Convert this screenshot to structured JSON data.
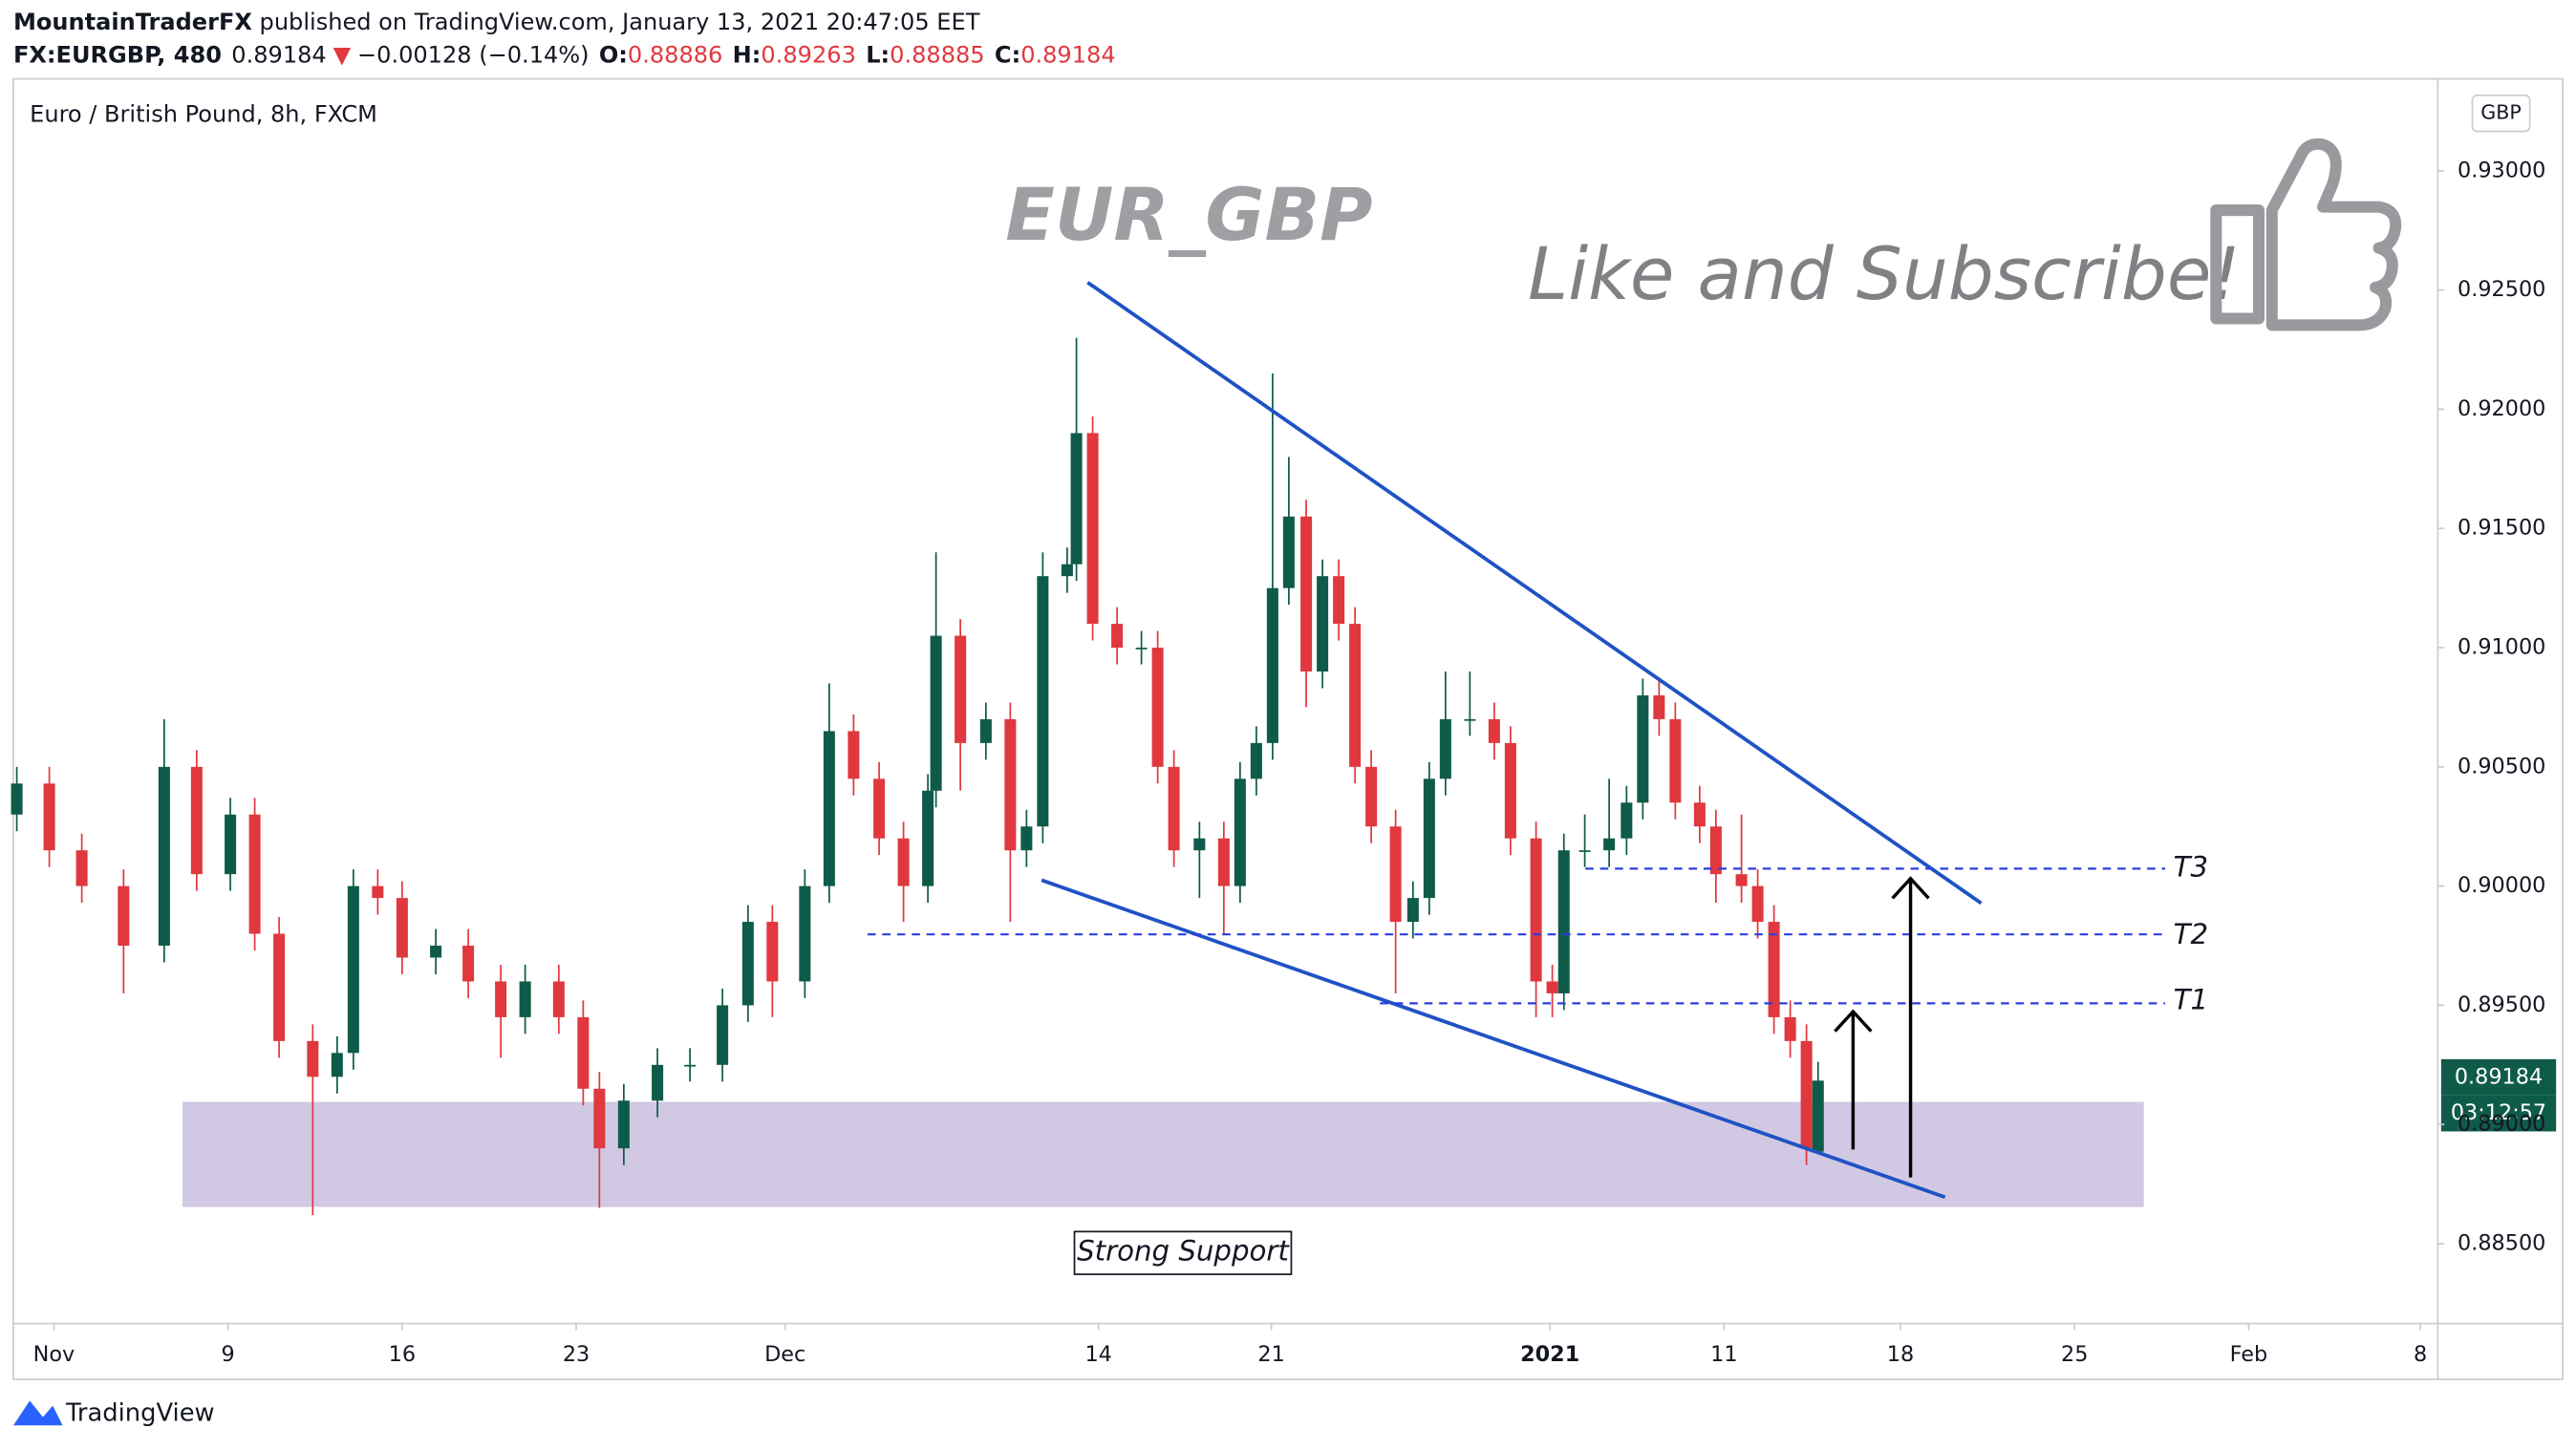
{
  "header": {
    "author": "MountainTraderFX",
    "published": " published on TradingView.com, January 13, 2021 20:47:05 EET",
    "symbol": "FX:EURGBP, 480",
    "price": "0.89184",
    "arrow": "▼",
    "change": "−0.00128 (−0.14%)",
    "ohlc": [
      {
        "label": "O:",
        "value": "0.88886"
      },
      {
        "label": "H:",
        "value": "0.89263"
      },
      {
        "label": "L:",
        "value": "0.88885"
      },
      {
        "label": "C:",
        "value": "0.89184"
      }
    ]
  },
  "chart_data": {
    "type": "candlestick",
    "title": "Euro / British Pound, 8h, FXCM",
    "currency": "GBP",
    "annotations": {
      "pair": "EUR_GBP",
      "cta": "Like and Subscribe!",
      "support": "Strong Support",
      "t1": "T1",
      "t2": "T2",
      "t3": "T3"
    },
    "last_price_label": "0.89184",
    "countdown": "03:12:57",
    "up_color": "#0f5b49",
    "down_color": "#e0383e",
    "grid": false,
    "xlim": [
      0,
      208.9
    ],
    "xticks": [
      {
        "value": 3.5,
        "label": "Nov"
      },
      {
        "value": 18.5,
        "label": "9"
      },
      {
        "value": 33.5,
        "label": "16"
      },
      {
        "value": 48.5,
        "label": "23"
      },
      {
        "value": 66.5,
        "label": "Dec"
      },
      {
        "value": 93.5,
        "label": "14"
      },
      {
        "value": 108.4,
        "label": "21"
      },
      {
        "value": 132.4,
        "label": "2021"
      },
      {
        "value": 147.4,
        "label": "11"
      },
      {
        "value": 162.6,
        "label": "18"
      },
      {
        "value": 177.6,
        "label": "25"
      },
      {
        "value": 192.6,
        "label": "Feb"
      },
      {
        "value": 207.4,
        "label": "8"
      }
    ],
    "ylim": [
      0.88165,
      0.93386
    ],
    "yticks": [
      {
        "value": 0.885,
        "label": "0.88500"
      },
      {
        "value": 0.89,
        "label": "0.89000"
      },
      {
        "value": 0.895,
        "label": "0.89500"
      },
      {
        "value": 0.9,
        "label": "0.90000"
      },
      {
        "value": 0.905,
        "label": "0.90500"
      },
      {
        "value": 0.91,
        "label": "0.91000"
      },
      {
        "value": 0.915,
        "label": "0.91500"
      },
      {
        "value": 0.92,
        "label": "0.92000"
      },
      {
        "value": 0.925,
        "label": "0.92500"
      },
      {
        "value": 0.93,
        "label": "0.93000"
      }
    ],
    "x": [
      0.3,
      3.1,
      5.9,
      9.5,
      13.0,
      15.8,
      18.7,
      20.8,
      22.9,
      25.8,
      27.9,
      29.3,
      31.4,
      33.5,
      36.4,
      39.2,
      42.0,
      44.1,
      47.0,
      49.1,
      50.5,
      52.6,
      55.5,
      58.3,
      61.1,
      63.3,
      65.4,
      68.2,
      70.3,
      72.4,
      74.6,
      76.7,
      78.8,
      79.5,
      81.6,
      83.8,
      85.9,
      87.3,
      88.7,
      90.8,
      91.6,
      93.0,
      95.1,
      97.2,
      98.6,
      100.0,
      102.2,
      104.3,
      105.7,
      107.1,
      108.5,
      109.9,
      111.4,
      112.8,
      114.2,
      115.6,
      117.0,
      119.1,
      120.6,
      122.0,
      123.4,
      125.5,
      127.6,
      129.0,
      131.2,
      132.6,
      133.6,
      135.4,
      137.5,
      139.0,
      140.4,
      141.8,
      143.2,
      145.3,
      146.7,
      148.9,
      150.3,
      151.7,
      153.1,
      154.5,
      155.5
    ],
    "open": [
      0.903,
      0.9043,
      0.9015,
      0.9,
      0.8975,
      0.905,
      0.9005,
      0.903,
      0.898,
      0.8935,
      0.892,
      0.893,
      0.9,
      0.8995,
      0.897,
      0.8975,
      0.896,
      0.8945,
      0.896,
      0.8945,
      0.8915,
      0.889,
      0.891,
      0.8925,
      0.8925,
      0.895,
      0.8985,
      0.896,
      0.9,
      0.9065,
      0.9045,
      0.902,
      0.9,
      0.904,
      0.9105,
      0.906,
      0.907,
      0.9015,
      0.9025,
      0.913,
      0.9135,
      0.919,
      0.911,
      0.91,
      0.91,
      0.905,
      0.9015,
      0.902,
      0.9,
      0.9045,
      0.906,
      0.9125,
      0.9155,
      0.909,
      0.913,
      0.911,
      0.905,
      0.9025,
      0.8985,
      0.8995,
      0.9045,
      0.907,
      0.907,
      0.906,
      0.902,
      0.896,
      0.8955,
      0.9015,
      0.9015,
      0.902,
      0.9035,
      0.908,
      0.907,
      0.9035,
      0.9025,
      0.9005,
      0.9,
      0.8985,
      0.8945,
      0.8935,
      0.88886
    ],
    "high": [
      0.905,
      0.905,
      0.9022,
      0.9007,
      0.907,
      0.9057,
      0.9037,
      0.9037,
      0.8987,
      0.8942,
      0.8937,
      0.9007,
      0.9007,
      0.9002,
      0.8982,
      0.8982,
      0.8967,
      0.8967,
      0.8967,
      0.8952,
      0.8922,
      0.8917,
      0.8932,
      0.8932,
      0.8957,
      0.8992,
      0.8992,
      0.9007,
      0.9085,
      0.9072,
      0.9052,
      0.9027,
      0.9047,
      0.914,
      0.9112,
      0.9077,
      0.9077,
      0.9032,
      0.914,
      0.9142,
      0.923,
      0.9197,
      0.9117,
      0.9107,
      0.9107,
      0.9057,
      0.9027,
      0.9027,
      0.9052,
      0.9067,
      0.9215,
      0.918,
      0.9162,
      0.9137,
      0.9137,
      0.9117,
      0.9057,
      0.9032,
      0.9002,
      0.9052,
      0.909,
      0.909,
      0.9077,
      0.9067,
      0.9027,
      0.8967,
      0.9022,
      0.903,
      0.9045,
      0.9042,
      0.9087,
      0.9087,
      0.9077,
      0.9042,
      0.9032,
      0.903,
      0.9007,
      0.8992,
      0.8952,
      0.8942,
      0.89263
    ],
    "low": [
      0.9023,
      0.9008,
      0.8993,
      0.8955,
      0.8968,
      0.8998,
      0.8998,
      0.8973,
      0.8928,
      0.8862,
      0.8913,
      0.8923,
      0.8988,
      0.8963,
      0.8963,
      0.8953,
      0.8928,
      0.8938,
      0.8938,
      0.8908,
      0.8865,
      0.8883,
      0.8903,
      0.8918,
      0.8918,
      0.8943,
      0.8945,
      0.8953,
      0.8993,
      0.9038,
      0.9013,
      0.8985,
      0.8993,
      0.9033,
      0.904,
      0.9053,
      0.8985,
      0.9008,
      0.9018,
      0.9123,
      0.9128,
      0.9103,
      0.9093,
      0.9093,
      0.9043,
      0.9008,
      0.8995,
      0.898,
      0.8993,
      0.9038,
      0.9053,
      0.9118,
      0.9075,
      0.9083,
      0.9103,
      0.9043,
      0.9018,
      0.8955,
      0.8978,
      0.8988,
      0.9038,
      0.9063,
      0.9053,
      0.9013,
      0.8945,
      0.8945,
      0.8948,
      0.9008,
      0.9008,
      0.9013,
      0.9028,
      0.9063,
      0.9028,
      0.9018,
      0.8993,
      0.8993,
      0.8978,
      0.8938,
      0.8928,
      0.8883,
      0.88885
    ],
    "close": [
      0.9043,
      0.9015,
      0.9,
      0.8975,
      0.905,
      0.9005,
      0.903,
      0.898,
      0.8935,
      0.892,
      0.893,
      0.9,
      0.8995,
      0.897,
      0.8975,
      0.896,
      0.8945,
      0.896,
      0.8945,
      0.8915,
      0.889,
      0.891,
      0.8925,
      0.8925,
      0.895,
      0.8985,
      0.896,
      0.9,
      0.9065,
      0.9045,
      0.902,
      0.9,
      0.904,
      0.9105,
      0.906,
      0.907,
      0.9015,
      0.9025,
      0.913,
      0.9135,
      0.919,
      0.911,
      0.91,
      0.91,
      0.905,
      0.9015,
      0.902,
      0.9,
      0.9045,
      0.906,
      0.9125,
      0.9155,
      0.909,
      0.913,
      0.911,
      0.905,
      0.9025,
      0.8985,
      0.8995,
      0.9045,
      0.907,
      0.907,
      0.906,
      0.902,
      0.896,
      0.8955,
      0.9015,
      0.9015,
      0.902,
      0.9035,
      0.908,
      0.907,
      0.9035,
      0.9025,
      0.9005,
      0.9,
      0.8985,
      0.8945,
      0.8935,
      0.889,
      0.89184
    ]
  },
  "footer": {
    "brand": "TradingView"
  }
}
